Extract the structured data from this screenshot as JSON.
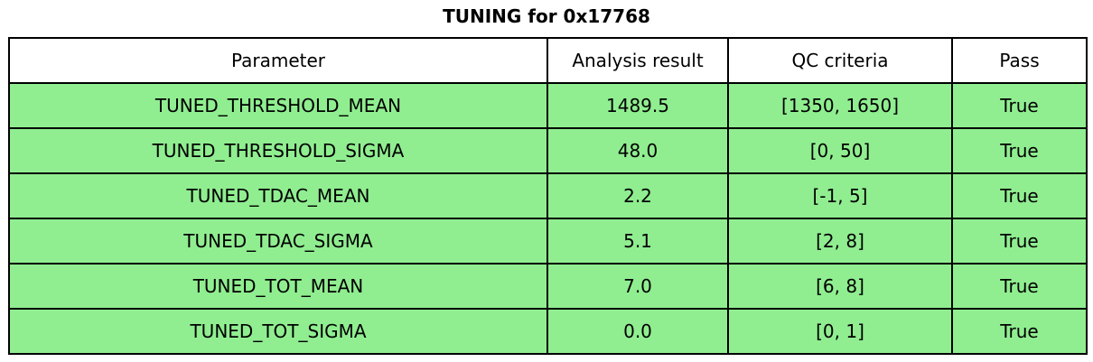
{
  "title": "TUNING for 0x17768",
  "colors": {
    "pass_row_bg": "#90EE90",
    "header_bg": "#ffffff",
    "border": "#000000"
  },
  "chart_data": {
    "type": "table",
    "title": "TUNING for 0x17768",
    "columns": [
      "Parameter",
      "Analysis result",
      "QC criteria",
      "Pass"
    ],
    "rows": [
      [
        "TUNED_THRESHOLD_MEAN",
        "1489.5",
        "[1350, 1650]",
        "True"
      ],
      [
        "TUNED_THRESHOLD_SIGMA",
        "48.0",
        "[0, 50]",
        "True"
      ],
      [
        "TUNED_TDAC_MEAN",
        "2.2",
        "[-1, 5]",
        "True"
      ],
      [
        "TUNED_TDAC_SIGMA",
        "5.1",
        "[2, 8]",
        "True"
      ],
      [
        "TUNED_TOT_MEAN",
        "7.0",
        "[6, 8]",
        "True"
      ],
      [
        "TUNED_TOT_SIGMA",
        "0.0",
        "[0, 1]",
        "True"
      ]
    ],
    "layout": {
      "header_position": "top",
      "grid": true,
      "row_highlight_meaning": "green = QC passed"
    }
  }
}
